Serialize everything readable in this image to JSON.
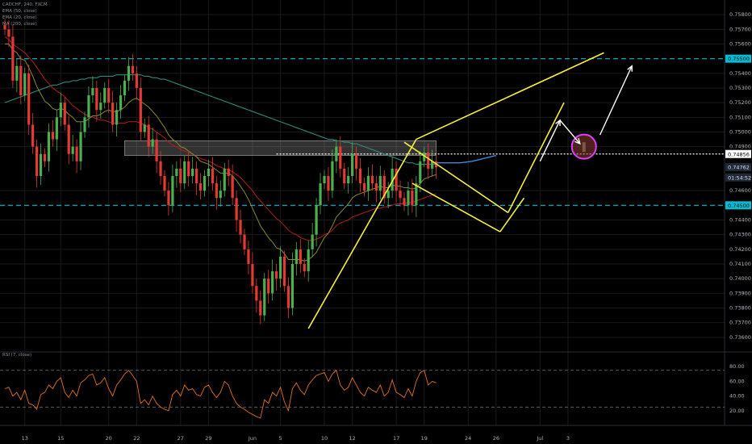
{
  "legend": {
    "symbol": "CADCHF, 240, FXCM",
    "ema_a": "EMA (50, close)",
    "ema_b": "EMA (20, close)",
    "ema_c": "MA (200, close)",
    "rsi": "RSI (7, close)"
  },
  "colors": {
    "bg": "#000000",
    "up": "#4caf50",
    "down": "#e53935",
    "grid": "#1a1a1a",
    "yellow": "#f5ef3a",
    "cyan": "#00bcd4",
    "teal": "#2e8b7a",
    "ema_red": "#b71c1c",
    "ema_olive": "#8c8a2a",
    "blue": "#3d8bd9",
    "rsi": "#e0741f",
    "magenta": "#e040fb",
    "white": "#ffffff",
    "axis_text": "#b0b4bc"
  },
  "chart_data": {
    "type": "candlestick",
    "y_axis": {
      "min": 0.735,
      "max": 0.759,
      "ticks": [
        0.758,
        0.757,
        0.756,
        0.754,
        0.753,
        0.752,
        0.751,
        0.75,
        0.749,
        0.746,
        0.744,
        0.743,
        0.742,
        0.741,
        0.74,
        0.739,
        0.738,
        0.737,
        0.736
      ],
      "tick_labels": [
        "0.75800",
        "0.75700",
        "0.75600",
        "0.75400",
        "0.75300",
        "0.75200",
        "0.75100",
        "0.75000",
        "0.74900",
        "0.74600",
        "0.74400",
        "0.74300",
        "0.74200",
        "0.74100",
        "0.74000",
        "0.73900",
        "0.73800",
        "0.73700",
        "0.73600"
      ],
      "price_labels": [
        {
          "value": 0.755,
          "text": "0.75500",
          "style": "cyan"
        },
        {
          "value": 0.7485,
          "text": "0.74856",
          "style": "white"
        },
        {
          "value": 0.7476,
          "text": "0.74762",
          "style": "dark"
        },
        {
          "value": 0.7469,
          "text": "01:54:52",
          "style": "dark"
        },
        {
          "value": 0.745,
          "text": "0.74500",
          "style": "cyan"
        }
      ]
    },
    "x_axis": {
      "ticks": [
        {
          "text": "13",
          "i": 5
        },
        {
          "text": "15",
          "i": 14
        },
        {
          "text": "20",
          "i": 26
        },
        {
          "text": "22",
          "i": 33
        },
        {
          "text": "27",
          "i": 44
        },
        {
          "text": "29",
          "i": 51
        },
        {
          "text": "Jun",
          "i": 62
        },
        {
          "text": "5",
          "i": 69
        },
        {
          "text": "10",
          "i": 80
        },
        {
          "text": "12",
          "i": 87
        },
        {
          "text": "17",
          "i": 98
        },
        {
          "text": "19",
          "i": 105
        },
        {
          "text": "24",
          "i": 116
        },
        {
          "text": "26",
          "i": 123
        },
        {
          "text": "Jul",
          "i": 134
        },
        {
          "text": "3",
          "i": 141
        }
      ]
    },
    "closes": [
      0.757,
      0.7565,
      0.7535,
      0.7545,
      0.7525,
      0.754,
      0.7505,
      0.749,
      0.747,
      0.7485,
      0.748,
      0.75,
      0.7495,
      0.751,
      0.752,
      0.7505,
      0.7485,
      0.749,
      0.748,
      0.75,
      0.751,
      0.7525,
      0.753,
      0.7515,
      0.752,
      0.753,
      0.752,
      0.7505,
      0.7515,
      0.7525,
      0.7535,
      0.7545,
      0.754,
      0.753,
      0.75,
      0.7505,
      0.749,
      0.7495,
      0.748,
      0.747,
      0.746,
      0.745,
      0.747,
      0.7475,
      0.7465,
      0.748,
      0.747,
      0.7475,
      0.7465,
      0.746,
      0.747,
      0.7475,
      0.7465,
      0.7455,
      0.746,
      0.7475,
      0.747,
      0.7455,
      0.744,
      0.743,
      0.742,
      0.741,
      0.7395,
      0.7385,
      0.7375,
      0.74,
      0.739,
      0.7405,
      0.74,
      0.7415,
      0.7395,
      0.738,
      0.741,
      0.742,
      0.741,
      0.7405,
      0.742,
      0.743,
      0.745,
      0.7465,
      0.747,
      0.746,
      0.748,
      0.749,
      0.7475,
      0.7465,
      0.747,
      0.7485,
      0.7475,
      0.7465,
      0.746,
      0.747,
      0.7465,
      0.746,
      0.747,
      0.7455,
      0.746,
      0.7475,
      0.746,
      0.7455,
      0.745,
      0.746,
      0.745,
      0.7465,
      0.748,
      0.7486,
      0.7475,
      0.748,
      0.7476
    ],
    "ema50": [
      0.7565,
      0.7563,
      0.756,
      0.7558,
      0.7556,
      0.7554,
      0.7551,
      0.7548,
      0.7544,
      0.754,
      0.7536,
      0.7533,
      0.753,
      0.7528,
      0.7526,
      0.7524,
      0.7521,
      0.7518,
      0.7516,
      0.7514,
      0.7512,
      0.7511,
      0.751,
      0.7509,
      0.7508,
      0.7508,
      0.7507,
      0.7506,
      0.7506,
      0.7506,
      0.7506,
      0.7507,
      0.7507,
      0.7507,
      0.7506,
      0.7505,
      0.7503,
      0.7502,
      0.75,
      0.7498,
      0.7496,
      0.7493,
      0.7491,
      0.749,
      0.7488,
      0.7487,
      0.7486,
      0.7485,
      0.7483,
      0.7482,
      0.7481,
      0.748,
      0.7479,
      0.7477,
      0.7476,
      0.7475,
      0.7474,
      0.7473,
      0.7471,
      0.7469,
      0.7466,
      0.7463,
      0.746,
      0.7456,
      0.7453,
      0.745,
      0.7447,
      0.7444,
      0.7441,
      0.7439,
      0.7436,
      0.7433,
      0.7431,
      0.743,
      0.7428,
      0.7427,
      0.7426,
      0.7426,
      0.7427,
      0.7428,
      0.743,
      0.7431,
      0.7433,
      0.7436,
      0.7438,
      0.7439,
      0.744,
      0.7442,
      0.7443,
      0.7444,
      0.7445,
      0.7446,
      0.7447,
      0.7448,
      0.7448,
      0.7449,
      0.7449,
      0.745,
      0.7451,
      0.7451,
      0.7451,
      0.7452,
      0.7452,
      0.7453,
      0.7454,
      0.7455,
      0.7456,
      0.7457,
      0.7458
    ],
    "ema20": [
      0.756,
      0.756,
      0.7556,
      0.7554,
      0.755,
      0.7549,
      0.7544,
      0.7538,
      0.7531,
      0.7526,
      0.7521,
      0.7519,
      0.7516,
      0.7515,
      0.7516,
      0.7515,
      0.7512,
      0.751,
      0.7507,
      0.7507,
      0.7507,
      0.7509,
      0.7511,
      0.7511,
      0.7512,
      0.7514,
      0.7515,
      0.7514,
      0.7514,
      0.7515,
      0.7517,
      0.752,
      0.7522,
      0.7523,
      0.7521,
      0.7519,
      0.7517,
      0.7514,
      0.7511,
      0.7507,
      0.7503,
      0.7498,
      0.7495,
      0.7493,
      0.749,
      0.7489,
      0.7487,
      0.7485,
      0.7483,
      0.748,
      0.7479,
      0.7478,
      0.7476,
      0.7474,
      0.7472,
      0.7472,
      0.7472,
      0.747,
      0.7467,
      0.7463,
      0.7459,
      0.7454,
      0.7448,
      0.7442,
      0.7436,
      0.7432,
      0.7428,
      0.7425,
      0.7421,
      0.742,
      0.7417,
      0.7413,
      0.7413,
      0.7413,
      0.7413,
      0.7412,
      0.7413,
      0.7415,
      0.7418,
      0.7423,
      0.7428,
      0.7431,
      0.7436,
      0.7442,
      0.7445,
      0.7448,
      0.7451,
      0.7455,
      0.7457,
      0.7458,
      0.7459,
      0.746,
      0.7461,
      0.7462,
      0.7463,
      0.7462,
      0.7462,
      0.7464,
      0.7463,
      0.7463,
      0.7462,
      0.7462,
      0.7461,
      0.7462,
      0.7465,
      0.7468,
      0.7469,
      0.747,
      0.7471
    ],
    "ma200": [
      0.752,
      0.7521,
      0.7522,
      0.7523,
      0.7524,
      0.7525,
      0.7526,
      0.7527,
      0.7528,
      0.7529,
      0.753,
      0.7531,
      0.7532,
      0.7532,
      0.7533,
      0.7534,
      0.7534,
      0.7535,
      0.7535,
      0.7536,
      0.7536,
      0.7537,
      0.7537,
      0.7537,
      0.7538,
      0.7538,
      0.7538,
      0.7538,
      0.7539,
      0.7539,
      0.7539,
      0.7539,
      0.7539,
      0.7539,
      0.7539,
      0.7538,
      0.7538,
      0.7537,
      0.7537,
      0.7536,
      0.7536,
      0.7535,
      0.7534,
      0.7533,
      0.7532,
      0.7531,
      0.753,
      0.7529,
      0.7528,
      0.7527,
      0.7526,
      0.7525,
      0.7524,
      0.7523,
      0.7522,
      0.7521,
      0.752,
      0.7519,
      0.7518,
      0.7517,
      0.7516,
      0.7515,
      0.7514,
      0.7513,
      0.7512,
      0.7511,
      0.751,
      0.7509,
      0.7508,
      0.7507,
      0.7506,
      0.7505,
      0.7504,
      0.7503,
      0.7502,
      0.7501,
      0.75,
      0.7499,
      0.7498,
      0.7497,
      0.7496,
      0.7495,
      0.7495,
      0.7494,
      0.7494,
      0.7493,
      0.7493,
      0.7492,
      0.7492,
      0.7491,
      0.749,
      0.7489,
      0.7488,
      0.7487,
      0.7486,
      0.7485,
      0.7484,
      0.7483,
      0.7482,
      0.7481,
      0.748,
      0.7479,
      0.7479,
      0.7478,
      0.7478,
      0.7478,
      0.7478,
      0.7478,
      0.7478
    ],
    "projection_blue": [
      [
        108,
        0.7479
      ],
      [
        111,
        0.7479
      ],
      [
        114,
        0.7479
      ],
      [
        117,
        0.748
      ],
      [
        120,
        0.7482
      ],
      [
        123,
        0.7484
      ]
    ],
    "rsi": {
      "min": 0,
      "max": 100,
      "ticks": [
        80,
        60,
        40,
        20
      ],
      "tick_labels": [
        "80.00",
        "60.00",
        "40.00",
        "20.00"
      ],
      "dashed_levels": [
        75,
        25
      ],
      "values": [
        50,
        52,
        40,
        45,
        35,
        48,
        30,
        28,
        22,
        42,
        45,
        55,
        50,
        60,
        65,
        45,
        38,
        48,
        40,
        58,
        62,
        68,
        70,
        55,
        58,
        65,
        50,
        40,
        55,
        62,
        70,
        75,
        68,
        60,
        30,
        35,
        28,
        40,
        30,
        25,
        22,
        20,
        42,
        48,
        40,
        55,
        48,
        50,
        42,
        40,
        52,
        55,
        45,
        38,
        45,
        60,
        55,
        40,
        30,
        25,
        22,
        18,
        15,
        12,
        10,
        35,
        30,
        45,
        40,
        52,
        32,
        20,
        50,
        58,
        48,
        42,
        55,
        62,
        68,
        70,
        72,
        60,
        70,
        75,
        55,
        48,
        52,
        65,
        55,
        45,
        40,
        52,
        48,
        45,
        55,
        40,
        45,
        62,
        45,
        42,
        38,
        50,
        40,
        60,
        72,
        75,
        55,
        60,
        58
      ]
    },
    "annotations": [
      {
        "type": "rectangle",
        "label": "resistance zone",
        "price_top": 0.7494,
        "price_bottom": 0.7484
      },
      {
        "type": "horizontal_line",
        "price": 0.755,
        "style": "dashed cyan"
      },
      {
        "type": "horizontal_line",
        "price": 0.745,
        "style": "dashed cyan"
      },
      {
        "type": "horizontal_line",
        "price": 0.7485,
        "style": "dotted white"
      },
      {
        "type": "channel",
        "color": "yellow",
        "description": "rising channel and bull flag"
      },
      {
        "type": "circle",
        "color": "magenta",
        "description": "retest target"
      },
      {
        "type": "arrows",
        "color": "white",
        "count": 3
      }
    ]
  }
}
